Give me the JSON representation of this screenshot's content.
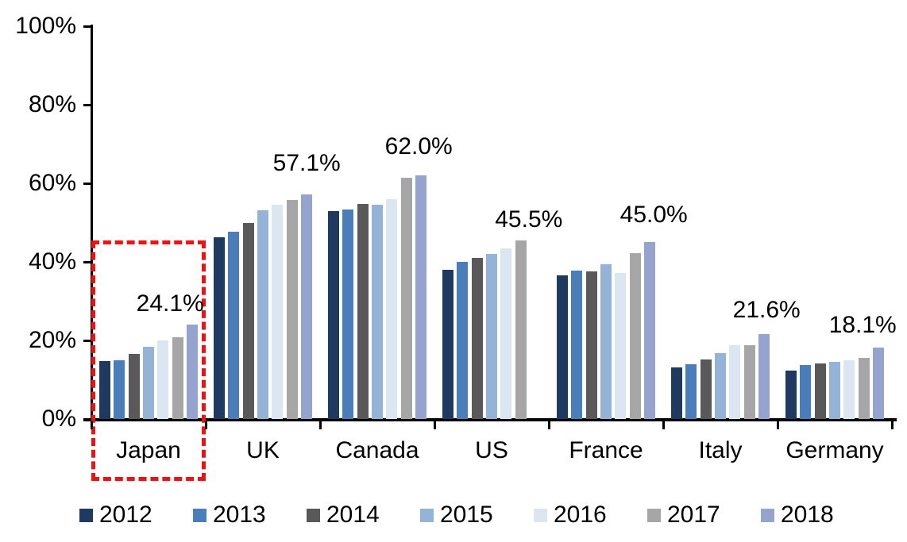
{
  "chart_data": {
    "type": "bar",
    "title": "",
    "xlabel": "",
    "ylabel": "",
    "ylim": [
      0,
      100
    ],
    "y_tick_labels": [
      "0%",
      "20%",
      "40%",
      "60%",
      "80%",
      "100%"
    ],
    "grid": "off",
    "legend_position": "bottom",
    "categories": [
      "Japan",
      "UK",
      "Canada",
      "US",
      "France",
      "Italy",
      "Germany"
    ],
    "series": [
      {
        "name": "2012",
        "color": "#1f3a60",
        "values": [
          14.8,
          46.3,
          53.0,
          38.0,
          36.5,
          13.2,
          12.4
        ]
      },
      {
        "name": "2013",
        "color": "#4a7ebb",
        "values": [
          15.0,
          47.7,
          53.4,
          40.0,
          37.8,
          14.0,
          13.8
        ]
      },
      {
        "name": "2014",
        "color": "#595959",
        "values": [
          16.5,
          49.8,
          54.8,
          41.0,
          37.6,
          15.2,
          14.2
        ]
      },
      {
        "name": "2015",
        "color": "#95b3d7",
        "values": [
          18.3,
          53.2,
          54.5,
          42.1,
          39.3,
          16.8,
          14.5
        ]
      },
      {
        "name": "2016",
        "color": "#dce6f1",
        "values": [
          20.0,
          54.5,
          56.0,
          43.5,
          37.2,
          18.7,
          15.0
        ]
      },
      {
        "name": "2017",
        "color": "#a6a6a6",
        "values": [
          20.8,
          55.7,
          61.5,
          45.5,
          42.3,
          18.8,
          15.5
        ]
      },
      {
        "name": "2018",
        "color": "#95a4cf",
        "values": [
          24.1,
          57.1,
          62.0,
          null,
          45.0,
          21.6,
          18.1
        ]
      }
    ],
    "group_value_labels": [
      "24.1%",
      "57.1%",
      "62.0%",
      "45.5%",
      "45.0%",
      "21.6%",
      "18.1%"
    ],
    "annotations": {
      "highlight_box": {
        "category": "Japan",
        "style": "dashed",
        "color": "#ee1313"
      }
    },
    "axis_color": "#000000",
    "text_color": "#000000"
  }
}
